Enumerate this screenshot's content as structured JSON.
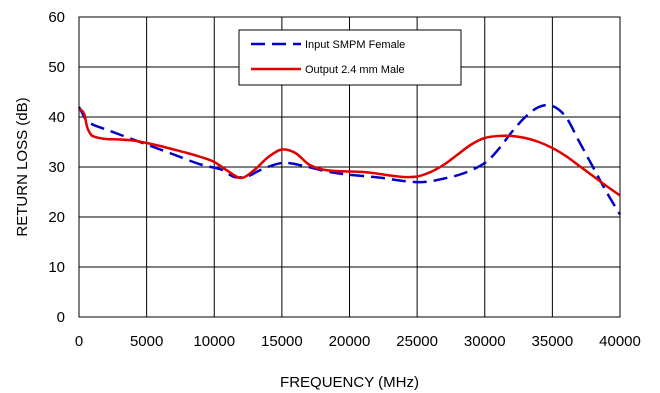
{
  "chart_data": {
    "type": "line",
    "title": "",
    "xlabel": "FREQUENCY (MHz)",
    "ylabel": "RETURN LOSS (dB)",
    "xlim": [
      0,
      40000
    ],
    "ylim": [
      0,
      60
    ],
    "xticks": [
      0,
      5000,
      10000,
      15000,
      20000,
      25000,
      30000,
      35000,
      40000
    ],
    "yticks": [
      0,
      10,
      20,
      30,
      40,
      50,
      60
    ],
    "grid": true,
    "legend_position": "top-center",
    "series": [
      {
        "name": "Input SMPM Female",
        "color": "#0000cc",
        "style": "dashed",
        "x": [
          0,
          200,
          500,
          1000,
          2000,
          3000,
          5000,
          7000,
          9000,
          10500,
          11500,
          12500,
          13500,
          15000,
          16500,
          18000,
          19500,
          21000,
          22500,
          24000,
          25500,
          27000,
          28500,
          30000,
          31000,
          32000,
          33000,
          34000,
          35000,
          36000,
          37000,
          38000,
          39000,
          40000
        ],
        "y": [
          42,
          41,
          39.5,
          38.5,
          37.5,
          36.5,
          34.5,
          32.5,
          30.5,
          29.5,
          28,
          28.2,
          29.5,
          30.8,
          30.3,
          29.3,
          28.6,
          28.2,
          27.8,
          27.2,
          27,
          27.7,
          28.8,
          30.8,
          33.5,
          37,
          40,
          42,
          42.2,
          40,
          35,
          30,
          25,
          20.5
        ]
      },
      {
        "name": "Output 2.4 mm Male",
        "color": "#e00000",
        "style": "solid",
        "x": [
          0,
          200,
          400,
          600,
          800,
          1000,
          1500,
          2000,
          3000,
          4000,
          5000,
          6000,
          7000,
          8000,
          9000,
          10000,
          11000,
          12000,
          13000,
          14000,
          15000,
          16000,
          17000,
          18000,
          19000,
          20000,
          21000,
          22000,
          23000,
          24000,
          25000,
          26000,
          27000,
          28000,
          29000,
          30000,
          31000,
          32000,
          33000,
          34000,
          35000,
          36000,
          37000,
          38000,
          39000,
          40000
        ],
        "y": [
          41.5,
          41.3,
          40.5,
          38,
          36.8,
          36.2,
          35.8,
          35.6,
          35.5,
          35.3,
          34.8,
          34.2,
          33.5,
          32.8,
          32,
          31,
          29.2,
          27.8,
          29.5,
          32,
          33.5,
          32.8,
          30.5,
          29.5,
          29.2,
          29.1,
          29,
          28.7,
          28.3,
          28,
          28.1,
          29,
          30.5,
          32.5,
          34.5,
          35.8,
          36.2,
          36.2,
          35.8,
          35,
          33.8,
          32.2,
          30.2,
          28.2,
          26.2,
          24.3
        ]
      }
    ]
  }
}
